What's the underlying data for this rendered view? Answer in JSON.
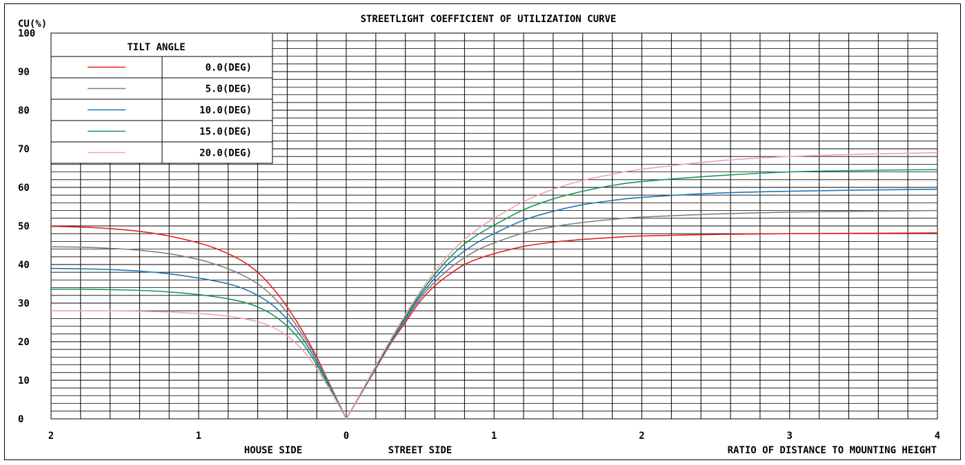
{
  "chart_data": {
    "type": "line",
    "title": "STREETLIGHT COEFFICIENT OF UTILIZATION CURVE",
    "ylabel": "CU(%)",
    "xlabel": "RATIO OF DISTANCE TO MOUNTING HEIGHT",
    "house_side_label": "HOUSE SIDE",
    "street_side_label": "STREET SIDE",
    "ylim": [
      0,
      100
    ],
    "y_ticks": [
      "0",
      "10",
      "20",
      "30",
      "40",
      "50",
      "60",
      "70",
      "80",
      "90",
      "100"
    ],
    "house_x_ticks": [
      "2",
      "1",
      "0"
    ],
    "street_x_ticks": [
      "1",
      "2",
      "3",
      "4"
    ],
    "house_xlim": [
      0,
      2
    ],
    "street_xlim": [
      0,
      4
    ],
    "grid": true,
    "legend": {
      "title": "TILT ANGLE",
      "placement": "top-left"
    },
    "series": [
      {
        "name": "0.0(DEG)",
        "color": "#e8201c",
        "house": {
          "x": [
            0,
            0.1,
            0.2,
            0.3,
            0.4,
            0.5,
            0.6,
            0.7,
            0.8,
            0.9,
            1.0,
            1.2,
            1.4,
            1.6,
            1.8,
            2.0
          ],
          "y": [
            0,
            8,
            16,
            23,
            29,
            34,
            38,
            40.8,
            42.8,
            44.4,
            45.6,
            47.4,
            48.6,
            49.3,
            49.7,
            49.9
          ]
        },
        "street": {
          "x": [
            0,
            0.1,
            0.2,
            0.3,
            0.4,
            0.5,
            0.6,
            0.7,
            0.8,
            0.9,
            1.0,
            1.2,
            1.4,
            1.6,
            1.8,
            2.0,
            2.5,
            3.0,
            3.5,
            4.0
          ],
          "y": [
            0,
            6.5,
            13,
            19.5,
            25,
            30.5,
            34.5,
            37.5,
            40,
            41.6,
            42.8,
            44.7,
            45.8,
            46.5,
            47,
            47.4,
            47.8,
            48.0,
            48.1,
            48.2
          ]
        }
      },
      {
        "name": "5.0(DEG)",
        "color": "#7f7f7f",
        "house": {
          "x": [
            0,
            0.1,
            0.2,
            0.3,
            0.4,
            0.5,
            0.6,
            0.7,
            0.8,
            0.9,
            1.0,
            1.2,
            1.4,
            1.6,
            1.8,
            2.0
          ],
          "y": [
            0,
            7.8,
            15.5,
            22,
            27.5,
            31.8,
            35,
            37.2,
            38.9,
            40.2,
            41.3,
            42.8,
            43.7,
            44.2,
            44.5,
            44.6
          ]
        },
        "street": {
          "x": [
            0,
            0.1,
            0.2,
            0.3,
            0.4,
            0.5,
            0.6,
            0.7,
            0.8,
            0.9,
            1.0,
            1.2,
            1.4,
            1.6,
            1.8,
            2.0,
            2.5,
            3.0,
            3.5,
            4.0
          ],
          "y": [
            0,
            6.6,
            13.2,
            19.8,
            25.5,
            31.2,
            35.5,
            39,
            41.8,
            44,
            45.6,
            48.2,
            49.8,
            50.9,
            51.7,
            52.3,
            53.1,
            53.6,
            53.8,
            54.0
          ]
        }
      },
      {
        "name": "10.0(DEG)",
        "color": "#1f77b4",
        "house": {
          "x": [
            0,
            0.1,
            0.2,
            0.3,
            0.4,
            0.5,
            0.6,
            0.7,
            0.8,
            0.9,
            1.0,
            1.2,
            1.4,
            1.6,
            1.8,
            2.0
          ],
          "y": [
            0,
            7.5,
            14.8,
            21,
            25.8,
            29.5,
            32,
            33.8,
            35,
            35.8,
            36.5,
            37.6,
            38.3,
            38.7,
            38.9,
            39.0
          ]
        },
        "street": {
          "x": [
            0,
            0.1,
            0.2,
            0.3,
            0.4,
            0.5,
            0.6,
            0.7,
            0.8,
            0.9,
            1.0,
            1.2,
            1.4,
            1.6,
            1.8,
            2.0,
            2.5,
            3.0,
            3.5,
            4.0
          ],
          "y": [
            0,
            6.7,
            13.4,
            20,
            26,
            31.8,
            36.5,
            40.5,
            43.5,
            46,
            48,
            51.5,
            53.8,
            55.5,
            56.6,
            57.4,
            58.5,
            59.0,
            59.3,
            59.5
          ]
        }
      },
      {
        "name": "15.0(DEG)",
        "color": "#1a9850",
        "house": {
          "x": [
            0,
            0.1,
            0.2,
            0.3,
            0.4,
            0.5,
            0.6,
            0.7,
            0.8,
            0.9,
            1.0,
            1.2,
            1.4,
            1.6,
            1.8,
            2.0
          ],
          "y": [
            0,
            7.2,
            14,
            19.8,
            24,
            27,
            29,
            30.3,
            31.1,
            31.7,
            32.2,
            32.9,
            33.3,
            33.5,
            33.6,
            33.6
          ]
        },
        "street": {
          "x": [
            0,
            0.1,
            0.2,
            0.3,
            0.4,
            0.5,
            0.6,
            0.7,
            0.8,
            0.9,
            1.0,
            1.2,
            1.4,
            1.6,
            1.8,
            2.0,
            2.5,
            3.0,
            3.5,
            4.0
          ],
          "y": [
            0,
            6.8,
            13.6,
            20.3,
            26.5,
            32.4,
            37.5,
            41.8,
            45.3,
            48,
            50.2,
            54.2,
            57,
            59,
            60.5,
            61.5,
            63.0,
            64.0,
            64.4,
            64.6
          ]
        }
      },
      {
        "name": "20.0(DEG)",
        "color": "#f0a0b8",
        "house": {
          "x": [
            0,
            0.1,
            0.2,
            0.3,
            0.4,
            0.5,
            0.6,
            0.7,
            0.8,
            0.9,
            1.0,
            1.2,
            1.4,
            1.6,
            1.8,
            2.0
          ],
          "y": [
            0,
            6.8,
            13,
            18,
            21.5,
            23.8,
            25.2,
            26,
            26.6,
            27,
            27.3,
            27.7,
            27.9,
            28.0,
            28.0,
            28.0
          ]
        },
        "street": {
          "x": [
            0,
            0.1,
            0.2,
            0.3,
            0.4,
            0.5,
            0.6,
            0.7,
            0.8,
            0.9,
            1.0,
            1.2,
            1.4,
            1.6,
            1.8,
            2.0,
            2.5,
            3.0,
            3.5,
            4.0
          ],
          "y": [
            0,
            6.9,
            13.8,
            20.6,
            27,
            33,
            38.3,
            42.8,
            46.5,
            49.5,
            52,
            56.3,
            59.5,
            61.8,
            63.4,
            64.7,
            66.8,
            68.0,
            68.6,
            69.0
          ]
        }
      }
    ]
  }
}
